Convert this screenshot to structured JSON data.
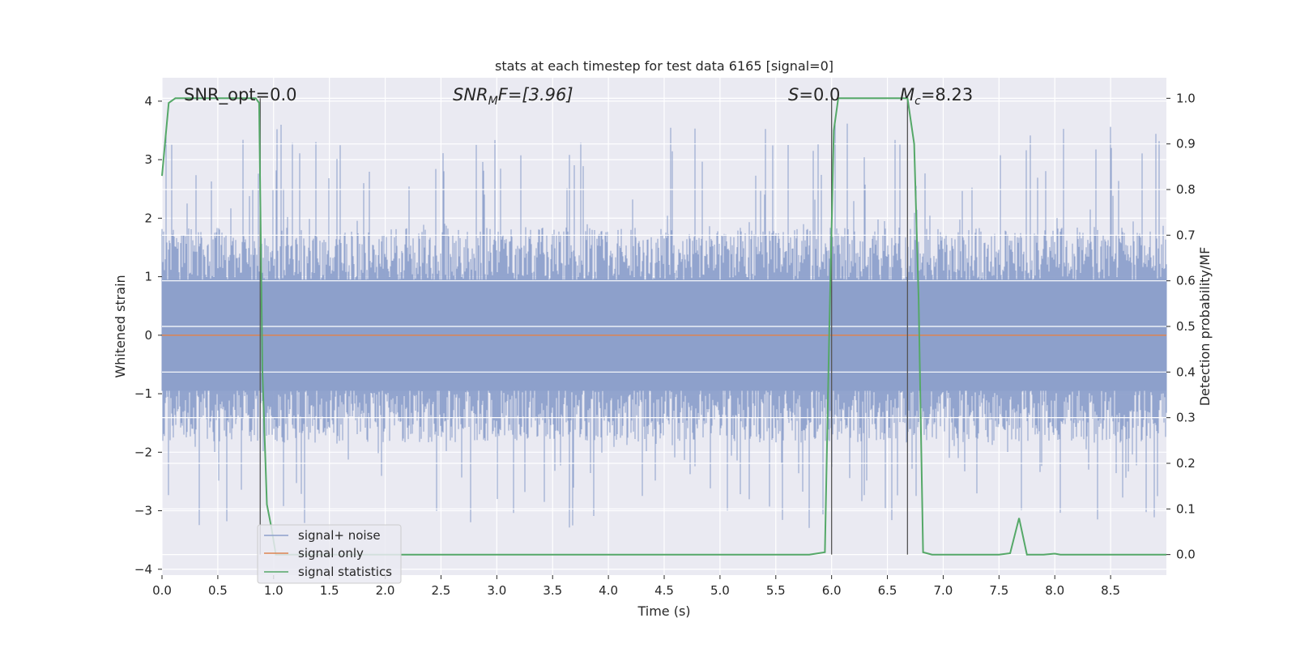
{
  "chart_data": {
    "type": "line",
    "title": "stats at each timestep for test data 6165 [signal=0]",
    "xlabel": "Time (s)",
    "ylabel_left": "Whitened strain",
    "ylabel_right": "Detection probability/MF",
    "xlim": [
      0,
      9
    ],
    "ylim_left": [
      -4.1,
      4.4
    ],
    "ylim_right": [
      -0.045,
      1.045
    ],
    "x_ticks": [
      "0.0",
      "0.5",
      "1.0",
      "1.5",
      "2.0",
      "2.5",
      "3.0",
      "3.5",
      "4.0",
      "4.5",
      "5.0",
      "5.5",
      "6.0",
      "6.5",
      "7.0",
      "7.5",
      "8.0",
      "8.5"
    ],
    "y_left_ticks": [
      "4",
      "3",
      "2",
      "1",
      "0",
      "−1",
      "−2",
      "−3",
      "−4"
    ],
    "y_left_tick_values": [
      4,
      3,
      2,
      1,
      0,
      -1,
      -2,
      -3,
      -4
    ],
    "y_right_ticks": [
      "1.0",
      "0.9",
      "0.8",
      "0.7",
      "0.6",
      "0.5",
      "0.4",
      "0.3",
      "0.2",
      "0.1",
      "0.0"
    ],
    "y_right_tick_values": [
      1.0,
      0.9,
      0.8,
      0.7,
      0.6,
      0.5,
      0.4,
      0.3,
      0.2,
      0.1,
      0.0
    ],
    "grid": true,
    "legend_position": "bottom-left",
    "annotations": {
      "snr_opt": "SNR_opt=0.0",
      "snr_mf_prefix": "SNR",
      "snr_mf_sub": "M",
      "snr_mf_suffix": "F=[3.96]",
      "s_value": "=0.0",
      "s_symbol": "S",
      "mc_symbol": "M",
      "mc_sub": "c",
      "mc_value": "=8.23"
    },
    "vertical_lines_x": [
      0.88,
      6.0,
      6.68
    ],
    "series": [
      {
        "name": "signal+ noise",
        "color": "#8da0cb",
        "style": "dense noise band",
        "envelope": {
          "typical_abs": 1.6,
          "peak_max": 4.0,
          "peak_min": -3.6
        }
      },
      {
        "name": "signal only",
        "color": "#dd8452",
        "x": [
          0,
          9
        ],
        "y": [
          0,
          0
        ]
      },
      {
        "name": "signal statistics",
        "color": "#55a868",
        "axis": "right",
        "x": [
          0.0,
          0.06,
          0.12,
          0.2,
          0.5,
          0.84,
          0.87,
          0.9,
          0.94,
          0.98,
          1.02,
          1.1,
          2.0,
          3.0,
          4.0,
          5.0,
          5.8,
          5.94,
          5.98,
          6.02,
          6.06,
          6.1,
          6.6,
          6.68,
          6.74,
          6.78,
          6.82,
          6.9,
          7.0,
          7.5,
          7.6,
          7.68,
          7.75,
          7.8,
          7.9,
          8.0,
          8.05,
          8.5,
          9.0
        ],
        "y": [
          0.83,
          0.99,
          1.0,
          1.0,
          1.0,
          1.0,
          0.99,
          0.4,
          0.11,
          0.06,
          0.0,
          0.0,
          0.0,
          0.0,
          0.0,
          0.0,
          0.0,
          0.005,
          0.5,
          0.93,
          1.0,
          1.0,
          1.0,
          1.0,
          0.9,
          0.56,
          0.005,
          0.0,
          0.0,
          0.0,
          0.003,
          0.08,
          0.0,
          0.0,
          0.0,
          0.002,
          0.0,
          0.0,
          0.0
        ]
      }
    ]
  }
}
